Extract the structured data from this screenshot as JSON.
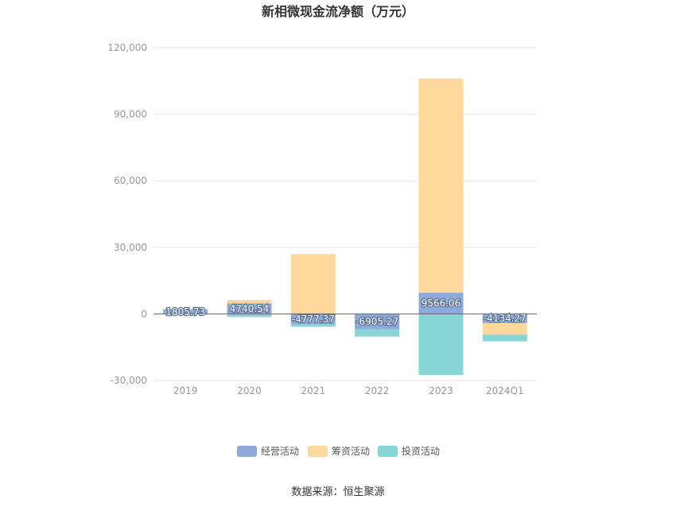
{
  "chart_data": {
    "type": "bar",
    "stacked": true,
    "title": "新相微现金流净额（万元）",
    "categories": [
      "2019",
      "2020",
      "2021",
      "2022",
      "2023",
      "2024Q1"
    ],
    "series": [
      {
        "name": "经营活动",
        "color": "#8eaadb",
        "values": [
          1805.73,
          4740.54,
          -4777.37,
          -6905.27,
          9566.06,
          -4134.27
        ],
        "labels": [
          "1805.73",
          "4740.54",
          "-4777.37",
          "-6905.27",
          "9566.06",
          "-4134.27"
        ]
      },
      {
        "name": "筹资活动",
        "color": "#ffd99b",
        "values": [
          0,
          1500,
          27000,
          0,
          96500,
          -5200
        ]
      },
      {
        "name": "投资活动",
        "color": "#88d5d6",
        "values": [
          400,
          -1400,
          -1000,
          -3300,
          -27500,
          -3000
        ]
      }
    ],
    "ylim": [
      -30000,
      120000
    ],
    "yticks": [
      -30000,
      0,
      30000,
      60000,
      90000,
      120000
    ],
    "ytick_labels": [
      "-30,000",
      "0",
      "30,000",
      "60,000",
      "90,000",
      "120,000"
    ],
    "grid": true,
    "legend_position": "bottom"
  },
  "source_text": "数据来源：恒生聚源"
}
